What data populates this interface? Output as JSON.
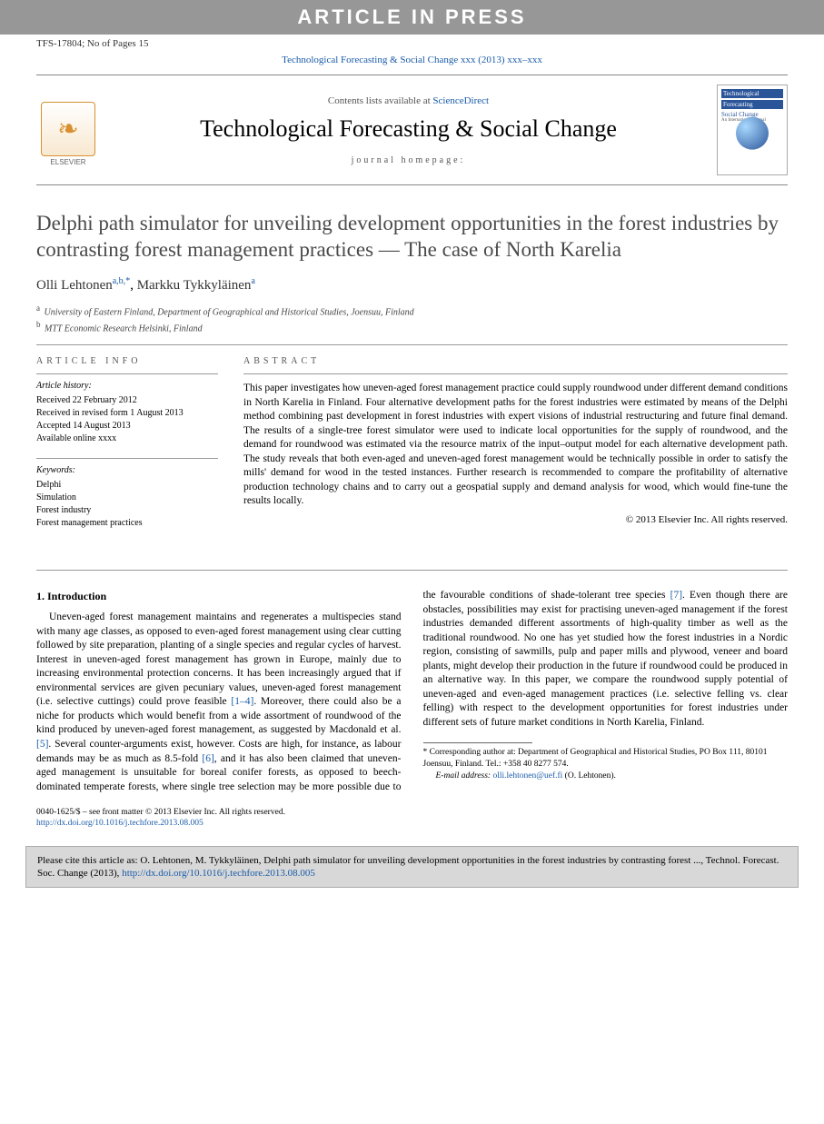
{
  "banner": "ARTICLE IN PRESS",
  "ref_id": "TFS-17804; No of Pages 15",
  "journal_ref": "Technological Forecasting & Social Change xxx (2013) xxx–xxx",
  "journal_box": {
    "contents_prefix": "Contents lists available at ",
    "contents_link": "ScienceDirect",
    "title": "Technological Forecasting & Social Change",
    "homepage": "journal homepage:",
    "elsevier": "ELSEVIER",
    "cover1": "Technological",
    "cover2": "Forecasting",
    "cover3": "Social Change",
    "cover4": "An International Journal"
  },
  "article": {
    "title": "Delphi path simulator for unveiling development opportunities in the forest industries by contrasting forest management practices — The case of North Karelia",
    "authors": [
      {
        "name": "Olli Lehtonen",
        "sup": "a,b,",
        "star": "*"
      },
      {
        "name": "Markku Tykkyläinen",
        "sup": "a",
        "star": ""
      }
    ],
    "affiliations": [
      {
        "sup": "a",
        "text": "University of Eastern Finland, Department of Geographical and Historical Studies, Joensuu, Finland"
      },
      {
        "sup": "b",
        "text": "MTT Economic Research Helsinki, Finland"
      }
    ]
  },
  "info": {
    "heading": "article info",
    "history_label": "Article history:",
    "history": [
      "Received 22 February 2012",
      "Received in revised form 1 August 2013",
      "Accepted 14 August 2013",
      "Available online xxxx"
    ],
    "keywords_label": "Keywords:",
    "keywords": [
      "Delphi",
      "Simulation",
      "Forest industry",
      "Forest management practices"
    ]
  },
  "abstract": {
    "heading": "abstract",
    "text": "This paper investigates how uneven-aged forest management practice could supply roundwood under different demand conditions in North Karelia in Finland. Four alternative development paths for the forest industries were estimated by means of the Delphi method combining past development in forest industries with expert visions of industrial restructuring and future final demand. The results of a single-tree forest simulator were used to indicate local opportunities for the supply of roundwood, and the demand for roundwood was estimated via the resource matrix of the input–output model for each alternative development path. The study reveals that both even-aged and uneven-aged forest management would be technically possible in order to satisfy the mills' demand for wood in the tested instances. Further research is recommended to compare the profitability of alternative production technology chains and to carry out a geospatial supply and demand analysis for wood, which would fine-tune the results locally.",
    "copyright": "© 2013 Elsevier Inc. All rights reserved."
  },
  "section": {
    "heading": "1. Introduction",
    "p1a": "Uneven-aged forest management maintains and regenerates a multispecies stand with many age classes, as opposed to even-aged forest management using clear cutting followed by site preparation, planting of a single species and regular cycles of harvest. Interest in uneven-aged forest management has grown in Europe, mainly due to increasing environmental protection concerns. It has been increasingly argued that if environmental services are given pecuniary values, uneven-aged forest management (i.e. selective cuttings) could prove feasible ",
    "ref1": "[1–4]",
    "p1b": ". Moreover, there could also be a niche for products which would benefit from a wide assortment of roundwood of the kind produced by uneven-aged forest management, as suggested by Macdonald et al. ",
    "ref5": "[5]",
    "p1c": ". Several counter-arguments exist, however. ",
    "p2a": "Costs are high, for instance, as labour demands may be as much as 8.5-fold ",
    "ref6": "[6]",
    "p2b": ", and it has also been claimed that uneven-aged management is unsuitable for boreal conifer forests, as opposed to beech-dominated temperate forests, where single tree selection may be more possible due to the favourable conditions of shade-tolerant tree species ",
    "ref7": "[7]",
    "p2c": ". Even though there are obstacles, possibilities may exist for practising uneven-aged management if the forest industries demanded different assortments of high-quality timber as well as the traditional roundwood. No one has yet studied how the forest industries in a Nordic region, consisting of sawmills, pulp and paper mills and plywood, veneer and board plants, might develop their production in the future if roundwood could be produced in an alternative way. In this paper, we compare the roundwood supply potential of uneven-aged and even-aged management practices (i.e. selective felling vs. clear felling) with respect to the development opportunities for forest industries under different sets of future market conditions in North Karelia, Finland."
  },
  "footnote": {
    "corr": "Corresponding author at: Department of Geographical and Historical Studies, PO Box 111, 80101 Joensuu, Finland. Tel.: +358 40 8277 574.",
    "email_label": "E-mail address:",
    "email": "olli.lehtonen@uef.fi",
    "email_who": "(O. Lehtonen)."
  },
  "front_matter": {
    "line1": "0040-1625/$ – see front matter © 2013 Elsevier Inc. All rights reserved.",
    "doi": "http://dx.doi.org/10.1016/j.techfore.2013.08.005"
  },
  "cite": {
    "text": "Please cite this article as: O. Lehtonen, M. Tykkyläinen, Delphi path simulator for unveiling development opportunities in the forest industries by contrasting forest ..., Technol. Forecast. Soc. Change (2013), ",
    "doi": "http://dx.doi.org/10.1016/j.techfore.2013.08.005"
  }
}
